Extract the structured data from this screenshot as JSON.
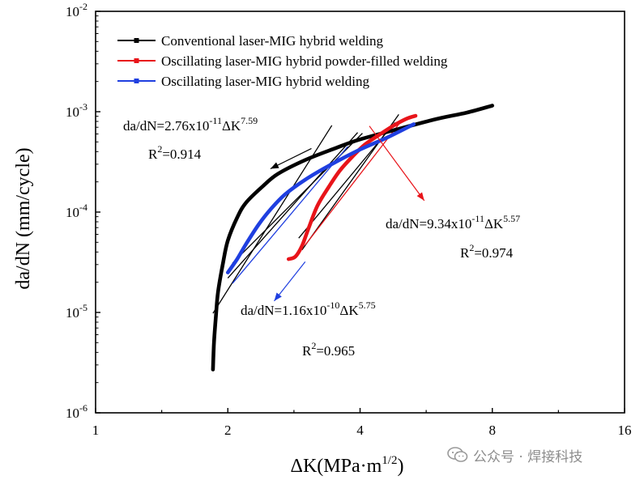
{
  "chart_data": {
    "type": "line",
    "title": "",
    "xlabel": "ΔK(MPa·m",
    "xlabel_sup": "1/2",
    "xlabel_tail": ")",
    "ylabel": "da/dN (mm/cycle)",
    "x_scale": "log2",
    "y_scale": "log10",
    "xlim": [
      1,
      16
    ],
    "ylim": [
      1e-06,
      0.01
    ],
    "x_ticks": [
      1,
      2,
      4,
      8,
      16
    ],
    "x_tick_labels": [
      "1",
      "2",
      "4",
      "8",
      "16"
    ],
    "y_ticks": [
      1e-06,
      1e-05,
      0.0001,
      0.001,
      0.01
    ],
    "y_tick_labels": [
      {
        "base": "10",
        "exp": "-6"
      },
      {
        "base": "10",
        "exp": "-5"
      },
      {
        "base": "10",
        "exp": "-4"
      },
      {
        "base": "10",
        "exp": "-3"
      },
      {
        "base": "10",
        "exp": "-2"
      }
    ],
    "grid": false,
    "legend_position": "top-left",
    "series": [
      {
        "name": "Conventional laser-MIG hybrid welding",
        "color": "#000000",
        "points": [
          [
            1.85,
            2.7e-06
          ],
          [
            1.86,
            5e-06
          ],
          [
            1.88,
            9.5e-06
          ],
          [
            1.9,
            1.6e-05
          ],
          [
            1.95,
            3.1e-05
          ],
          [
            2.0,
            5.2e-05
          ],
          [
            2.1,
            8.8e-05
          ],
          [
            2.2,
            0.000124
          ],
          [
            2.4,
            0.00018
          ],
          [
            2.6,
            0.00024
          ],
          [
            3.0,
            0.00033
          ],
          [
            3.5,
            0.00043
          ],
          [
            4.0,
            0.00053
          ],
          [
            5.0,
            0.00069
          ],
          [
            6.0,
            0.00085
          ],
          [
            7.0,
            0.00098
          ],
          [
            8.0,
            0.00115
          ]
        ]
      },
      {
        "name": "Oscillating laser-MIG hybrid powder-filled welding",
        "color": "#e8141a",
        "points": [
          [
            2.75,
            3.4e-05
          ],
          [
            2.85,
            3.6e-05
          ],
          [
            2.95,
            4.6e-05
          ],
          [
            3.05,
            6.8e-05
          ],
          [
            3.2,
            0.000116
          ],
          [
            3.4,
            0.00018
          ],
          [
            3.6,
            0.00026
          ],
          [
            3.85,
            0.00036
          ],
          [
            4.1,
            0.00047
          ],
          [
            4.4,
            0.00058
          ],
          [
            4.75,
            0.00072
          ],
          [
            5.1,
            0.00085
          ],
          [
            5.35,
            0.00091
          ]
        ]
      },
      {
        "name": "Oscillating laser-MIG hybrid welding",
        "color": "#1f3fe0",
        "points": [
          [
            2.0,
            2.5e-05
          ],
          [
            2.1,
            3.4e-05
          ],
          [
            2.2,
            4.8e-05
          ],
          [
            2.35,
            7.5e-05
          ],
          [
            2.5,
            0.000106
          ],
          [
            2.7,
            0.00015
          ],
          [
            3.0,
            0.00021
          ],
          [
            3.4,
            0.00029
          ],
          [
            4.0,
            0.00042
          ],
          [
            4.6,
            0.00055
          ],
          [
            5.3,
            0.00075
          ]
        ]
      }
    ],
    "fit_lines": [
      {
        "color": "#000000",
        "points": [
          [
            1.85,
            9.8e-06
          ],
          [
            3.45,
            0.00073
          ]
        ]
      },
      {
        "color": "#000000",
        "points": [
          [
            2.0,
            2.2e-05
          ],
          [
            3.95,
            0.00062
          ]
        ]
      },
      {
        "color": "#000000",
        "points": [
          [
            2.05,
            3.1e-05
          ],
          [
            4.05,
            0.00061
          ]
        ]
      },
      {
        "color": "#000000",
        "points": [
          [
            2.95,
            4.2e-05
          ],
          [
            4.9,
            0.00094
          ]
        ]
      },
      {
        "color": "#000000",
        "points": [
          [
            2.9,
            5.5e-05
          ],
          [
            4.8,
            0.00078
          ]
        ]
      },
      {
        "color": "#1f3fe0",
        "points": [
          [
            2.05,
            1.95e-05
          ],
          [
            3.75,
            0.00045
          ]
        ]
      },
      {
        "color": "#e8141a",
        "points": [
          [
            3.0,
            4.7e-05
          ],
          [
            5.0,
            0.00084
          ]
        ]
      }
    ],
    "annotations": [
      {
        "id": "ann-conventional",
        "color": "#000000",
        "lines": [
          {
            "parts": [
              {
                "t": "da/dN=2.76x10"
              },
              {
                "t": "-11",
                "sup": true
              },
              {
                "t": "ΔK"
              },
              {
                "t": "7.59",
                "sup": true
              }
            ]
          },
          {
            "parts": [
              {
                "t": "R"
              },
              {
                "t": "2",
                "sup": true
              },
              {
                "t": "=0.914"
              }
            ]
          }
        ]
      },
      {
        "id": "ann-powder",
        "color": "#000000",
        "lines": [
          {
            "parts": [
              {
                "t": "da/dN=9.34x10"
              },
              {
                "t": "-11",
                "sup": true
              },
              {
                "t": "ΔK"
              },
              {
                "t": "5.57",
                "sup": true
              }
            ]
          },
          {
            "parts": [
              {
                "t": "R"
              },
              {
                "t": "2",
                "sup": true
              },
              {
                "t": "=0.974"
              }
            ]
          }
        ]
      },
      {
        "id": "ann-oscillating",
        "color": "#000000",
        "lines": [
          {
            "parts": [
              {
                "t": "da/dN=1.16x10"
              },
              {
                "t": "-10",
                "sup": true
              },
              {
                "t": "ΔK"
              },
              {
                "t": "5.75",
                "sup": true
              }
            ]
          },
          {
            "parts": [
              {
                "t": "R"
              },
              {
                "t": "2",
                "sup": true
              },
              {
                "t": "=0.965"
              }
            ]
          }
        ]
      }
    ],
    "arrows": [
      {
        "color": "#000000",
        "from": [
          3.1,
          0.00043
        ],
        "to": [
          2.5,
          0.00027
        ]
      },
      {
        "color": "#e8141a",
        "from": [
          4.2,
          0.00072
        ],
        "to": [
          5.6,
          0.00013
        ]
      },
      {
        "color": "#1f3fe0",
        "from": [
          3.0,
          3.2e-05
        ],
        "to": [
          2.55,
          1.3e-05
        ]
      }
    ]
  },
  "watermark": {
    "text": "公众号 · 焊接科技",
    "icon": "wechat-icon"
  }
}
